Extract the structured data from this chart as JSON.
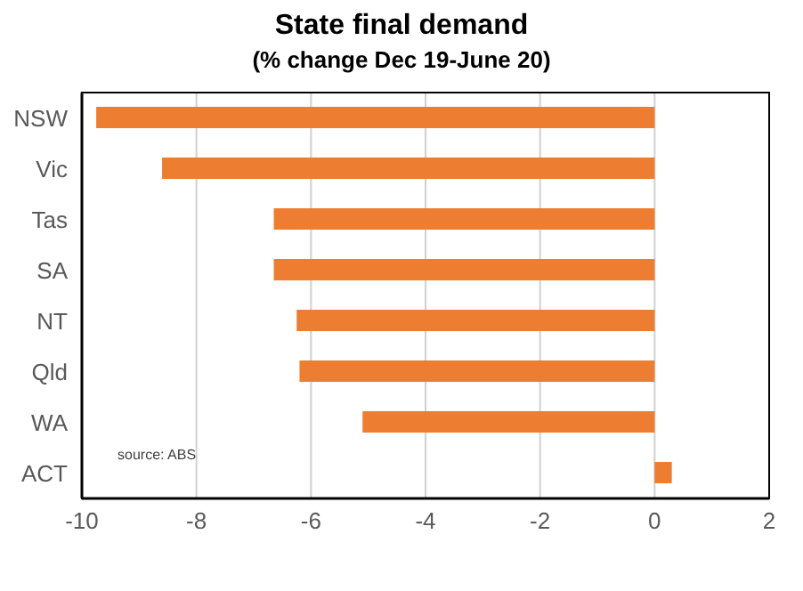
{
  "chart_data": {
    "type": "bar",
    "orientation": "horizontal",
    "title": "State final demand",
    "subtitle": "(% change Dec 19-June 20)",
    "categories": [
      "NSW",
      "Vic",
      "Tas",
      "SA",
      "NT",
      "Qld",
      "WA",
      "ACT"
    ],
    "values": [
      -9.75,
      -8.6,
      -6.65,
      -6.65,
      -6.25,
      -6.2,
      -5.1,
      0.3
    ],
    "color": "#ed7d31",
    "xlim": [
      -10,
      2
    ],
    "xticks": [
      -10,
      -8,
      -6,
      -4,
      -2,
      0,
      2
    ],
    "grid": "x",
    "annotations": [
      "source:  ABS"
    ]
  }
}
